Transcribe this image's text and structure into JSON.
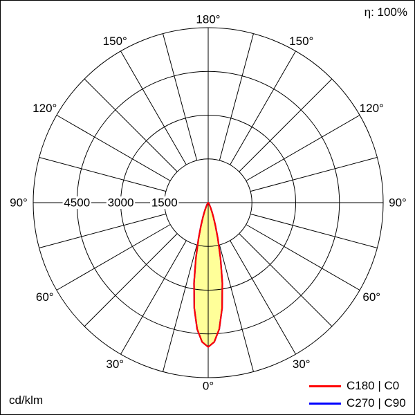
{
  "header": {
    "efficiency": "η: 100%"
  },
  "footer": {
    "unit": "cd/klm"
  },
  "legend": [
    {
      "label": "C180 | C0",
      "color": "#ff0000"
    },
    {
      "label": "C270 | C90",
      "color": "#0000ff"
    }
  ],
  "chart_data": {
    "type": "line",
    "coordinate_system": "polar",
    "description": "Luminous intensity distribution curve (photometric polar diagram)",
    "unit": "cd/klm",
    "r_max": 6000,
    "rings": [
      1500,
      3000,
      4500,
      6000
    ],
    "ring_labels": [
      {
        "value": 4500,
        "label": "4500"
      },
      {
        "value": 3000,
        "label": "3000"
      },
      {
        "value": 1500,
        "label": "1500"
      }
    ],
    "spoke_step_deg": 15,
    "angle_labels": [
      {
        "angle": 0,
        "label": "0°"
      },
      {
        "angle": 30,
        "label": "30°"
      },
      {
        "angle": 60,
        "label": "60°"
      },
      {
        "angle": 90,
        "label": "90°"
      },
      {
        "angle": 120,
        "label": "120°"
      },
      {
        "angle": 150,
        "label": "150°"
      },
      {
        "angle": 180,
        "label": "180°"
      }
    ],
    "series": [
      {
        "name": "C270 | C90",
        "color": "#0000ff",
        "fill": null,
        "gamma": [
          0,
          2.5,
          5,
          7.5,
          10,
          12.5,
          15,
          17.5,
          20,
          22.5,
          25,
          30,
          35,
          40,
          45,
          60,
          75,
          90
        ],
        "intensity": [
          4950,
          4780,
          4350,
          3650,
          2800,
          1950,
          1280,
          820,
          510,
          320,
          200,
          80,
          32,
          12,
          5,
          0,
          0,
          0
        ]
      },
      {
        "name": "C180 | C0",
        "color": "#ff0000",
        "fill": "#ffff99",
        "gamma": [
          0,
          2.5,
          5,
          7.5,
          10,
          12.5,
          15,
          17.5,
          20,
          22.5,
          25,
          30,
          35,
          40,
          45,
          60,
          75,
          90
        ],
        "intensity": [
          4950,
          4780,
          4350,
          3650,
          2800,
          1950,
          1280,
          820,
          510,
          320,
          200,
          80,
          32,
          12,
          5,
          0,
          0,
          0
        ]
      }
    ]
  }
}
